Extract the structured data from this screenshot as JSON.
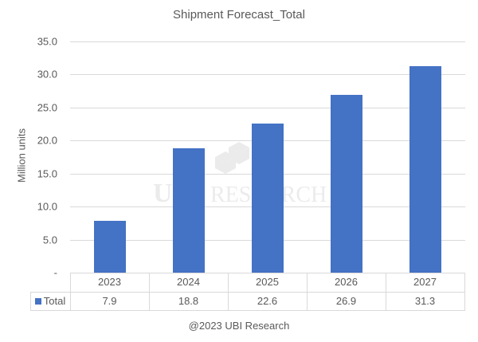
{
  "chart": {
    "title": "Shipment Forecast_Total",
    "ylabel": "Million units",
    "y_ticks": [
      "35.0",
      "30.0",
      "25.0",
      "20.0",
      "15.0",
      "10.0",
      "5.0",
      "-"
    ],
    "series_label": "Total",
    "categories": [
      "2023",
      "2024",
      "2025",
      "2026",
      "2027"
    ],
    "value_labels": [
      "7.9",
      "18.8",
      "22.6",
      "26.9",
      "31.3"
    ],
    "bar_color": "#4472C4",
    "watermark": "UBI RESEARCH",
    "footer": "@2023 UBI Research"
  },
  "chart_data": {
    "type": "bar",
    "title": "Shipment Forecast_Total",
    "xlabel": "",
    "ylabel": "Million units",
    "categories": [
      "2023",
      "2024",
      "2025",
      "2026",
      "2027"
    ],
    "series": [
      {
        "name": "Total",
        "values": [
          7.9,
          18.8,
          22.6,
          26.9,
          31.3
        ],
        "color": "#4472C4"
      }
    ],
    "ylim": [
      0,
      35
    ],
    "y_ticks": [
      0,
      5,
      10,
      15,
      20,
      25,
      30,
      35
    ],
    "y_tick_labels": [
      "-",
      "5.0",
      "10.0",
      "15.0",
      "20.0",
      "25.0",
      "30.0",
      "35.0"
    ],
    "grid": true,
    "legend_position": "data-table",
    "data_table": true,
    "annotations": [
      "UBI RESEARCH (watermark)",
      "@2023 UBI Research"
    ]
  }
}
